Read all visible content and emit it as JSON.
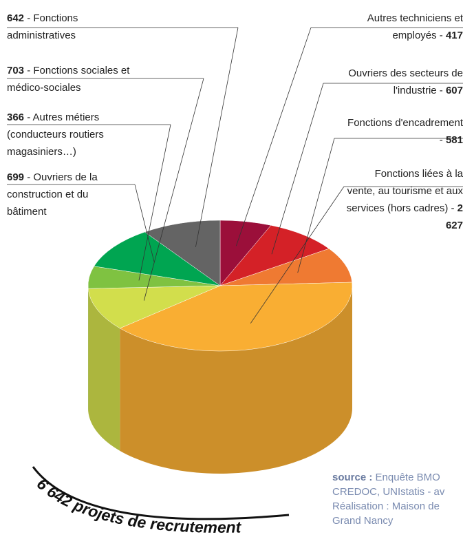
{
  "chart_data": {
    "type": "pie3d",
    "categories": [
      "Autres techniciens et employés -",
      "Ouvriers des secteurs de l'industrie -",
      "Fonctions d'encadrement -",
      "Fonctions liées à la vente, au tourisme et aux services (hors cadres) -",
      "- Fonctions sociales et médico-sociales",
      "- Autres métiers (conducteurs routiers magasiniers…)",
      "- Ouvriers de la construction et du bâtiment",
      "- Fonctions administratives"
    ],
    "values": [
      417,
      607,
      581,
      2627,
      703,
      366,
      699,
      642
    ],
    "value_labels": [
      "417",
      "607",
      "581",
      "2 627",
      "703",
      "366",
      "699",
      "642"
    ],
    "colors": [
      "#9b0f3a",
      "#d42127",
      "#ef7a32",
      "#f9ae33",
      "#d2de4c",
      "#7fc241",
      "#00a551",
      "#646464"
    ],
    "total_label": "6 642 projets de recrutement",
    "source_label": "source :",
    "source_lines": [
      "Enquête BMO",
      "CREDOC, UNIstatis - av",
      "Réalisation : Maison de",
      "Grand Nancy"
    ]
  }
}
